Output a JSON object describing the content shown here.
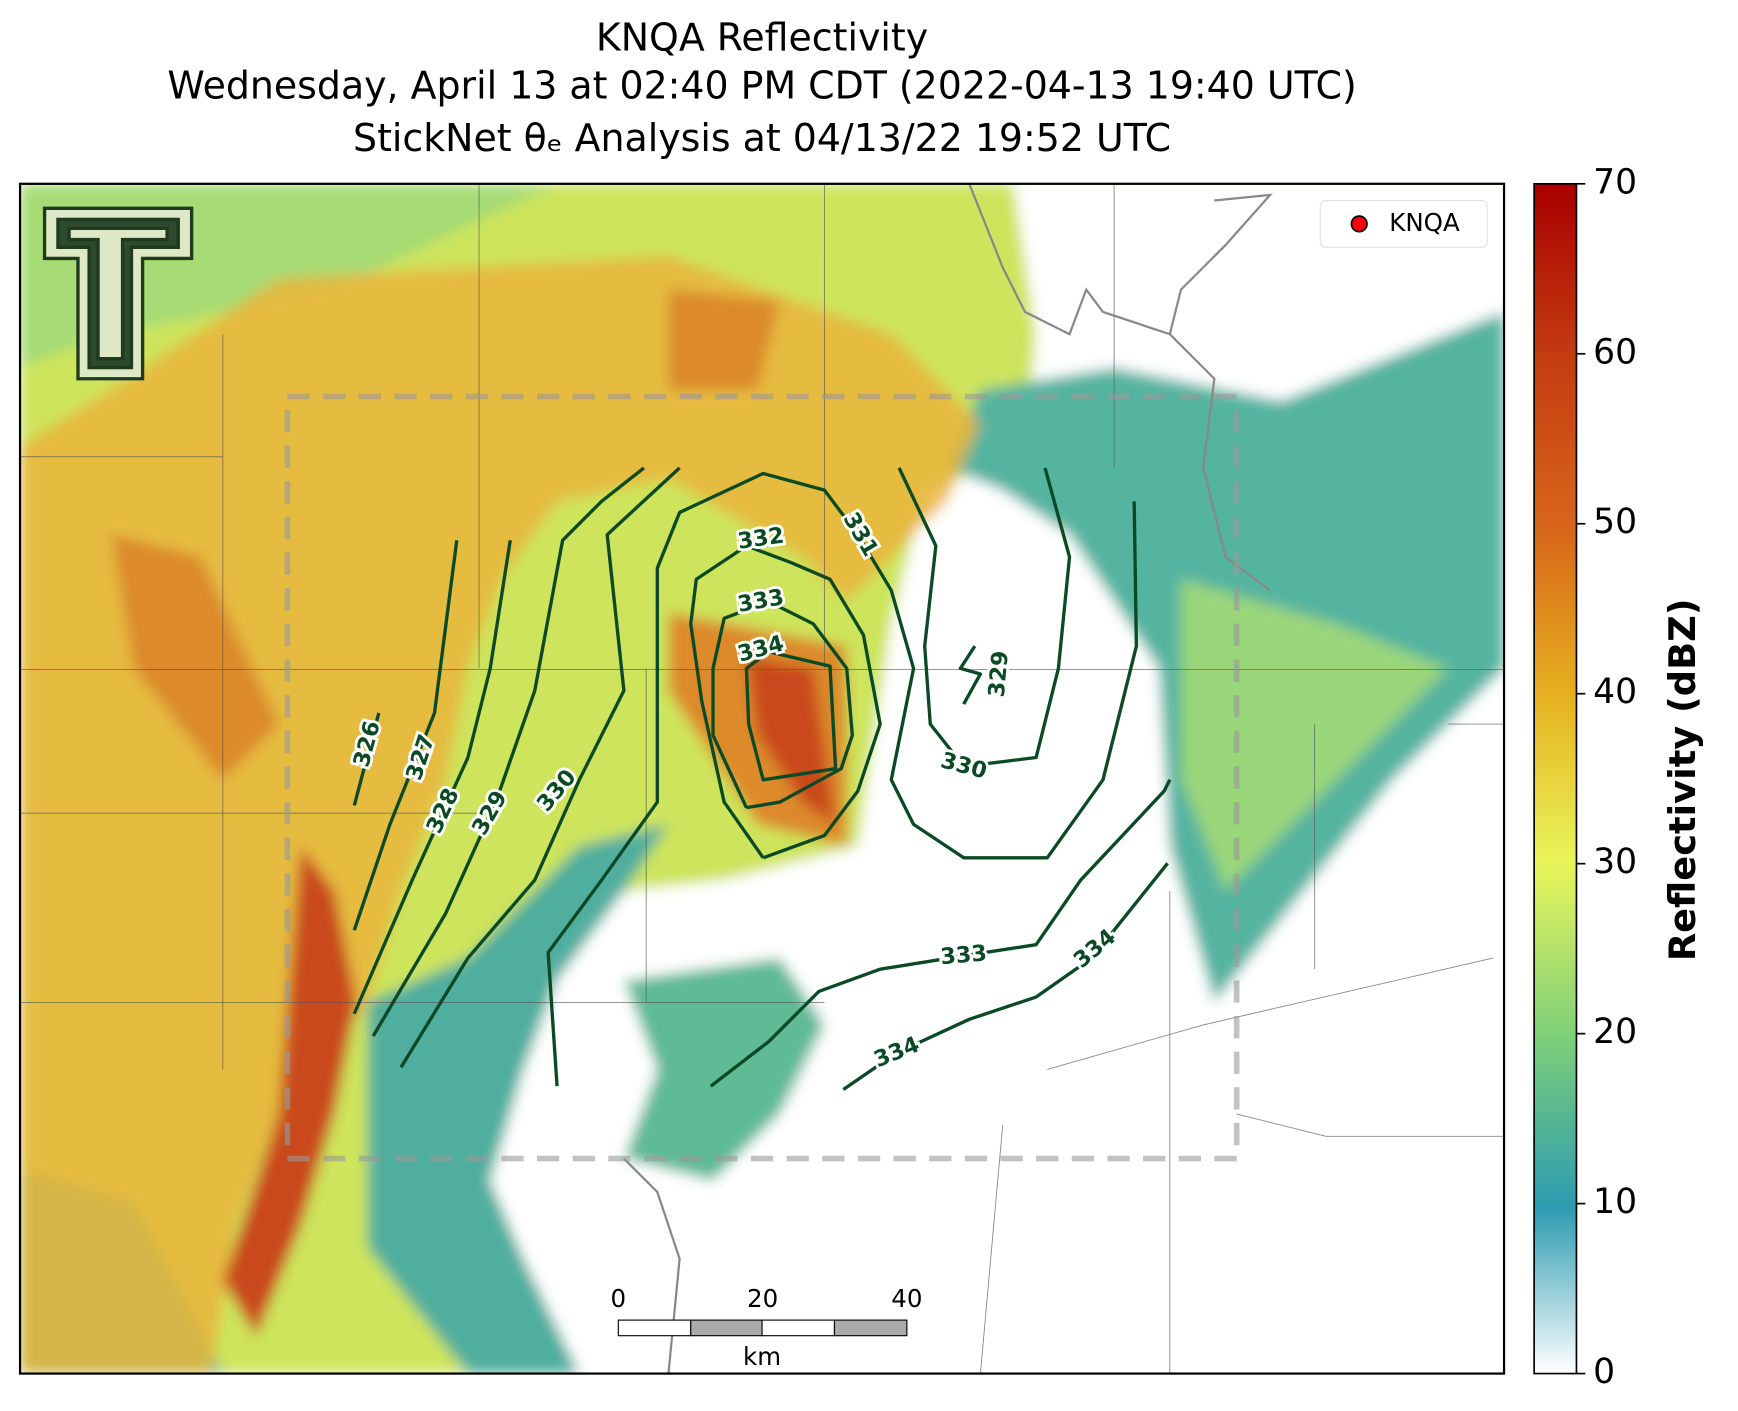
{
  "title": [
    "KNQA Reflectivity",
    "Wednesday, April 13 at 02:40 PM CDT (2022-04-13 19:40 UTC)",
    "StickNet θₑ Analysis at 04/13/22 19:52 UTC"
  ],
  "legend": [
    "KNQA"
  ],
  "colorbar": {
    "label": "Reflectivity (dBZ)",
    "lim": [
      0,
      70
    ],
    "ticks": [
      0,
      10,
      20,
      30,
      40,
      50,
      60,
      70
    ]
  },
  "scale_bar": {
    "ticks": [
      0,
      20,
      40
    ],
    "unit": "km"
  },
  "contours": {
    "labels": [
      326,
      327,
      328,
      329,
      330,
      332,
      333,
      334,
      331,
      329,
      330,
      333,
      334,
      334
    ]
  }
}
